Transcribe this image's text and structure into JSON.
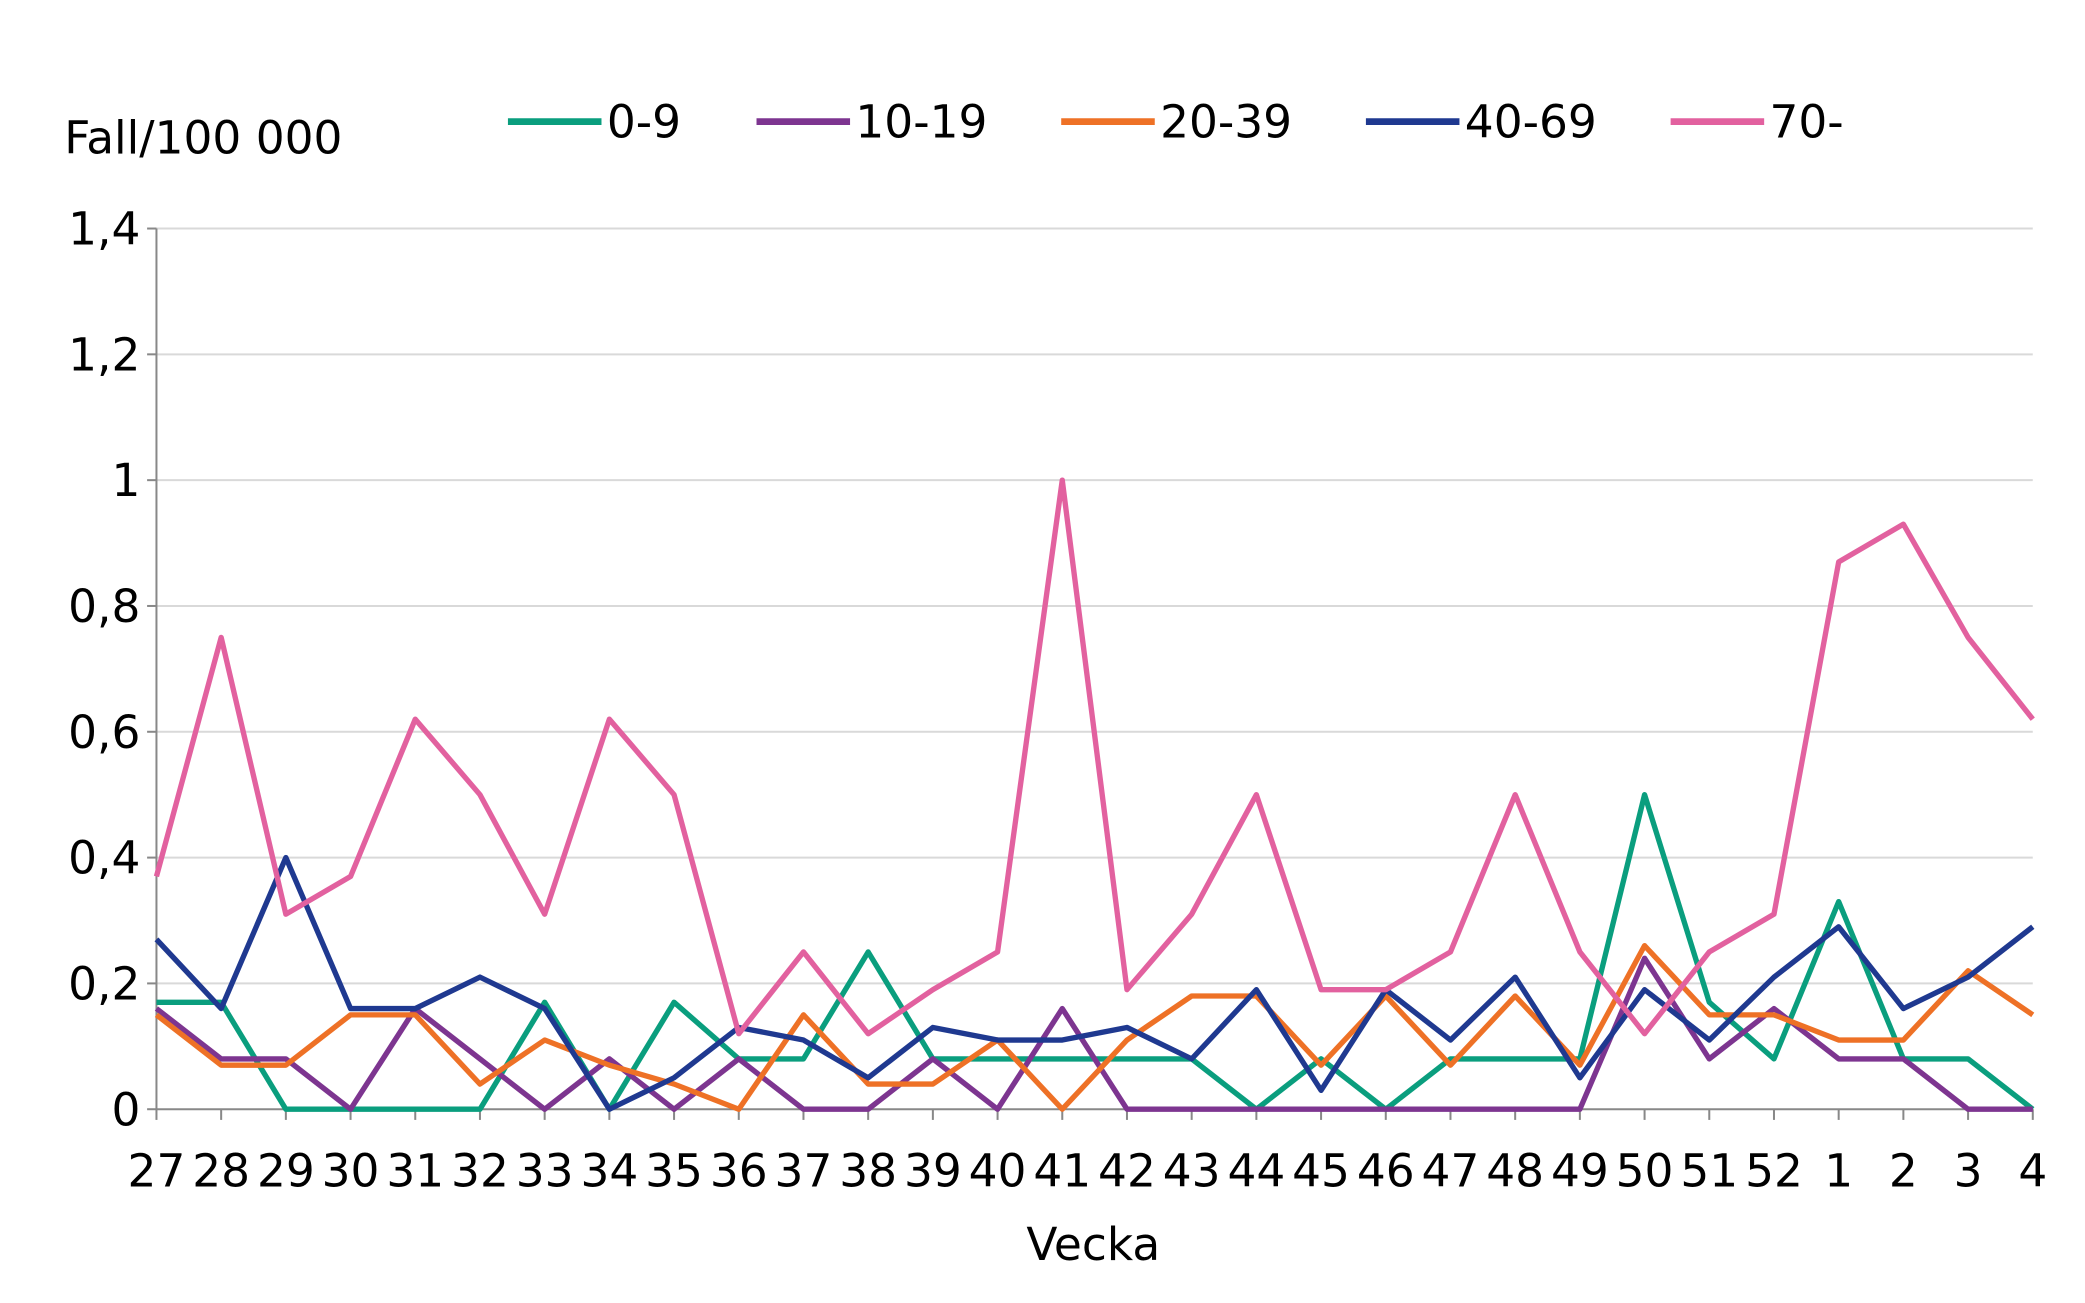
{
  "chart_data": {
    "type": "line",
    "title": "",
    "ylabel": "Fall/100 000",
    "xlabel": "Vecka",
    "ylim": [
      0,
      1.4
    ],
    "yticks": [
      "0",
      "0,2",
      "0,4",
      "0,6",
      "0,8",
      "1",
      "1,2",
      "1,4"
    ],
    "ytick_values": [
      0,
      0.2,
      0.4,
      0.6,
      0.8,
      1.0,
      1.2,
      1.4
    ],
    "grid": true,
    "legend_position": "top",
    "categories": [
      "27",
      "28",
      "29",
      "30",
      "31",
      "32",
      "33",
      "34",
      "35",
      "36",
      "37",
      "38",
      "39",
      "40",
      "41",
      "42",
      "43",
      "44",
      "45",
      "46",
      "47",
      "48",
      "49",
      "50",
      "51",
      "52",
      "1",
      "2",
      "3",
      "4"
    ],
    "series": [
      {
        "name": "0-9",
        "color": "#0a9e7e",
        "values": [
          0.17,
          0.17,
          0,
          0,
          0,
          0,
          0.17,
          0,
          0.17,
          0.08,
          0.08,
          0.25,
          0.08,
          0.08,
          0.08,
          0.08,
          0.08,
          0,
          0.08,
          0,
          0.08,
          0.08,
          0.08,
          0.5,
          0.17,
          0.08,
          0.33,
          0.08,
          0.08,
          0
        ]
      },
      {
        "name": "10-19",
        "color": "#7d3590",
        "values": [
          0.16,
          0.08,
          0.08,
          0,
          0.16,
          0.08,
          0,
          0.08,
          0,
          0.08,
          0,
          0,
          0.08,
          0,
          0.16,
          0,
          0,
          0,
          0,
          0,
          0,
          0,
          0,
          0.24,
          0.08,
          0.16,
          0.08,
          0.08,
          0,
          0
        ]
      },
      {
        "name": "20-39",
        "color": "#ee7126",
        "values": [
          0.15,
          0.07,
          0.07,
          0.15,
          0.15,
          0.04,
          0.11,
          0.07,
          0.04,
          0,
          0.15,
          0.04,
          0.04,
          0.11,
          0,
          0.11,
          0.18,
          0.18,
          0.07,
          0.18,
          0.07,
          0.18,
          0.07,
          0.26,
          0.15,
          0.15,
          0.11,
          0.11,
          0.22,
          0.15
        ]
      },
      {
        "name": "40-69",
        "color": "#1f3990",
        "values": [
          0.27,
          0.16,
          0.4,
          0.16,
          0.16,
          0.21,
          0.16,
          0,
          0.05,
          0.13,
          0.11,
          0.05,
          0.13,
          0.11,
          0.11,
          0.13,
          0.08,
          0.19,
          0.03,
          0.19,
          0.11,
          0.21,
          0.05,
          0.19,
          0.11,
          0.21,
          0.29,
          0.16,
          0.21,
          0.29
        ]
      },
      {
        "name": "70-",
        "color": "#e2619f",
        "values": [
          0.37,
          0.75,
          0.31,
          0.37,
          0.62,
          0.5,
          0.31,
          0.62,
          0.5,
          0.12,
          0.25,
          0.12,
          0.19,
          0.25,
          1.0,
          0.19,
          0.31,
          0.5,
          0.19,
          0.19,
          0.25,
          0.5,
          0.25,
          0.12,
          0.25,
          0.31,
          0.87,
          0.93,
          0.75,
          0.62
        ]
      }
    ]
  }
}
